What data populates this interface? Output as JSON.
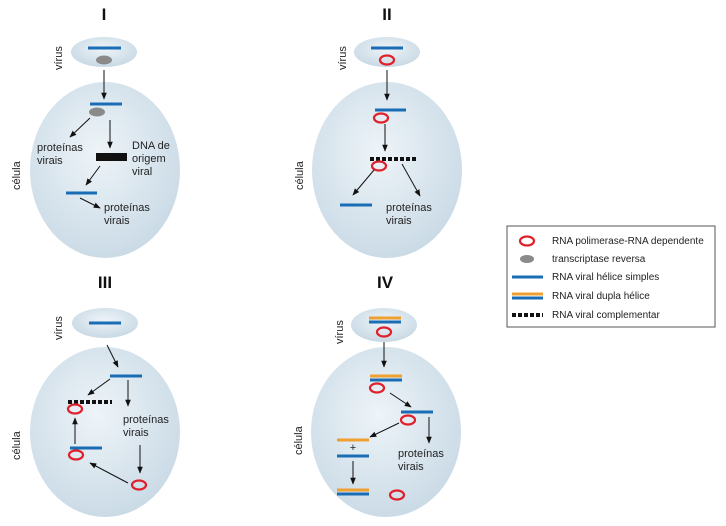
{
  "panels": {
    "I": {
      "numeral": "I",
      "virus_label": "vírus",
      "cell_label": "célula",
      "proteins_left": [
        "proteínas",
        "virais"
      ],
      "dna_label": [
        "DNA de",
        "origem",
        "viral"
      ],
      "proteins_bottom": [
        "proteínas",
        "virais"
      ]
    },
    "II": {
      "numeral": "II",
      "virus_label": "vírus",
      "cell_label": "célula",
      "proteins": [
        "proteínas",
        "virais"
      ]
    },
    "III": {
      "numeral": "III",
      "virus_label": "vírus",
      "cell_label": "célula",
      "proteins": [
        "proteínas",
        "virais"
      ]
    },
    "IV": {
      "numeral": "IV",
      "virus_label": "vírus",
      "cell_label": "célula",
      "plus_sign": "+",
      "proteins": [
        "proteínas",
        "virais"
      ]
    }
  },
  "legend": {
    "items": [
      {
        "label": "RNA polimerase-RNA dependente",
        "icon": "red-ring"
      },
      {
        "label": "transcriptase reversa",
        "icon": "gray-ellipse"
      },
      {
        "label": "RNA viral hélice simples",
        "icon": "blue-line"
      },
      {
        "label": "RNA viral dupla hélice",
        "icon": "orange-blue-double-line"
      },
      {
        "label": "RNA viral complementar",
        "icon": "black-dashed-line"
      }
    ]
  },
  "colors": {
    "cell_fill": "#d6e4ee",
    "rna_blue": "#1a6db5",
    "rna_orange": "#f0a030",
    "enzyme_red": "#e0202a",
    "transcriptase_gray": "#8a8a8a",
    "complement_black": "#111111"
  }
}
